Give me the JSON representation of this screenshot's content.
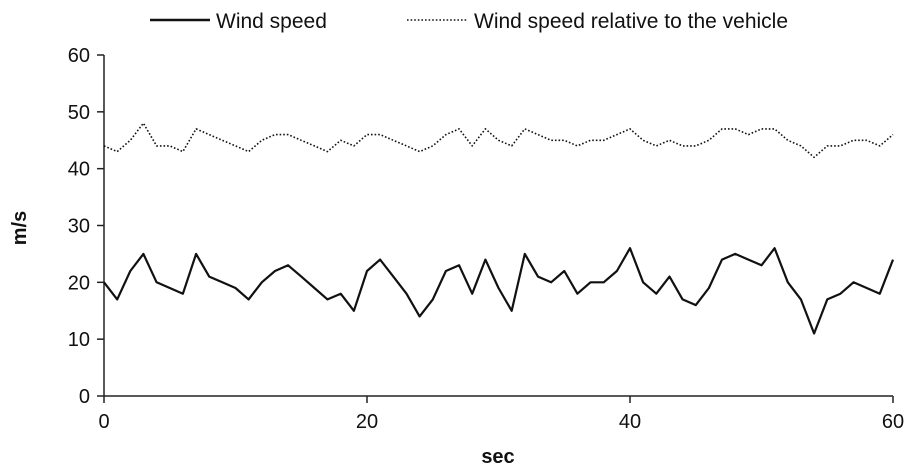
{
  "chart_data": {
    "type": "line",
    "title": "",
    "xlabel": "sec",
    "ylabel": "m/s",
    "xlim": [
      0,
      60
    ],
    "ylim": [
      0,
      60
    ],
    "x_ticks": [
      0,
      20,
      40,
      60
    ],
    "y_ticks": [
      0,
      10,
      20,
      30,
      40,
      50,
      60
    ],
    "grid": false,
    "legend_position": "top",
    "x": [
      0,
      1,
      2,
      3,
      4,
      5,
      6,
      7,
      8,
      9,
      10,
      11,
      12,
      13,
      14,
      15,
      16,
      17,
      18,
      19,
      20,
      21,
      22,
      23,
      24,
      25,
      26,
      27,
      28,
      29,
      30,
      31,
      32,
      33,
      34,
      35,
      36,
      37,
      38,
      39,
      40,
      41,
      42,
      43,
      44,
      45,
      46,
      47,
      48,
      49,
      50,
      51,
      52,
      53,
      54,
      55,
      56,
      57,
      58,
      59,
      60
    ],
    "series": [
      {
        "name": "Wind speed",
        "line_style": "solid",
        "color": "#111111",
        "values": [
          20,
          17,
          22,
          25,
          20,
          19,
          18,
          25,
          21,
          20,
          19,
          17,
          20,
          22,
          23,
          21,
          19,
          17,
          18,
          15,
          22,
          24,
          21,
          18,
          14,
          17,
          22,
          23,
          18,
          24,
          19,
          15,
          25,
          21,
          20,
          22,
          18,
          20,
          20,
          22,
          26,
          20,
          18,
          21,
          17,
          16,
          19,
          24,
          25,
          24,
          23,
          26,
          20,
          17,
          11,
          17,
          18,
          20,
          19,
          18,
          24
        ]
      },
      {
        "name": "Wind speed relative to the vehicle",
        "line_style": "dotted",
        "color": "#111111",
        "values": [
          44,
          43,
          45,
          48,
          44,
          44,
          43,
          47,
          46,
          45,
          44,
          43,
          45,
          46,
          46,
          45,
          44,
          43,
          45,
          44,
          46,
          46,
          45,
          44,
          43,
          44,
          46,
          47,
          44,
          47,
          45,
          44,
          47,
          46,
          45,
          45,
          44,
          45,
          45,
          46,
          47,
          45,
          44,
          45,
          44,
          44,
          45,
          47,
          47,
          46,
          47,
          47,
          45,
          44,
          42,
          44,
          44,
          45,
          45,
          44,
          46
        ]
      }
    ]
  }
}
